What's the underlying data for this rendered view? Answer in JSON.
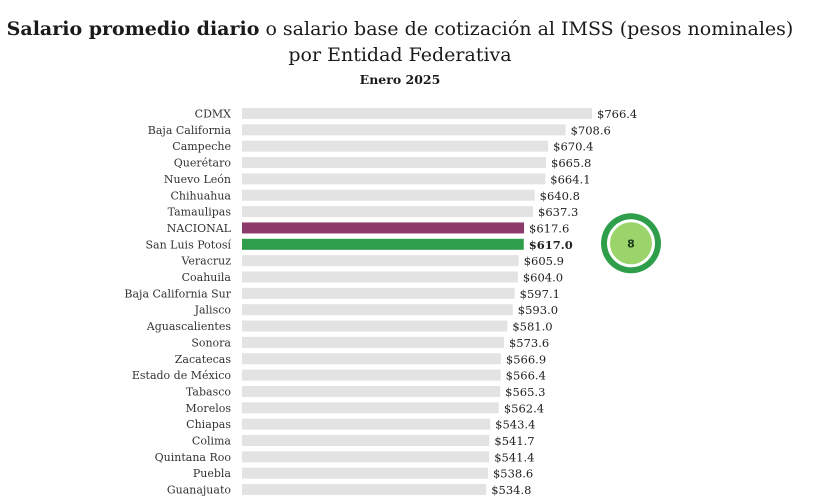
{
  "header": {
    "title_bold": "Salario promedio diario",
    "title_rest": " o salario base de cotización al IMSS (pesos nominales)",
    "subtitle": "por Entidad Federativa",
    "period": "Enero 2025"
  },
  "badge": {
    "label": "8",
    "color_outer": "#2e9e4a",
    "color_inner": "#9bd46a"
  },
  "colors": {
    "default_bar": "#e3e3e3",
    "nacional_bar": "#8c3a6c",
    "highlight_bar": "#2e9e4a"
  },
  "chart_data": {
    "type": "bar",
    "orientation": "horizontal",
    "title": "Salario promedio diario o salario base de cotización al IMSS (pesos nominales)",
    "subtitle": "por Entidad Federativa",
    "xlabel": "",
    "ylabel": "",
    "grid": false,
    "xlim": [
      0,
      800
    ],
    "categories": [
      "CDMX",
      "Baja California",
      "Campeche",
      "Querétaro",
      "Nuevo León",
      "Chihuahua",
      "Tamaulipas",
      "NACIONAL",
      "San Luis Potosí",
      "Veracruz",
      "Coahuila",
      "Baja California Sur",
      "Jalisco",
      "Aguascalientes",
      "Sonora",
      "Zacatecas",
      "Estado de México",
      "Tabasco",
      "Morelos",
      "Chiapas",
      "Colima",
      "Quintana Roo",
      "Puebla",
      "Guanajuato"
    ],
    "values": [
      766.4,
      708.6,
      670.4,
      665.8,
      664.1,
      640.8,
      637.3,
      617.6,
      617.0,
      605.9,
      604.0,
      597.1,
      593.0,
      581.0,
      573.6,
      566.9,
      566.4,
      565.3,
      562.4,
      543.4,
      541.7,
      541.4,
      538.6,
      534.8
    ],
    "value_labels": [
      "$766.4",
      "$708.6",
      "$670.4",
      "$665.8",
      "$664.1",
      "$640.8",
      "$637.3",
      "$617.6",
      "$617.0",
      "$605.9",
      "$604.0",
      "$597.1",
      "$593.0",
      "$581.0",
      "$573.6",
      "$566.9",
      "$566.4",
      "$565.3",
      "$562.4",
      "$543.4",
      "$541.7",
      "$541.4",
      "$538.6",
      "$534.8"
    ],
    "highlight": [
      "NACIONAL",
      "San Luis Potosí"
    ]
  }
}
